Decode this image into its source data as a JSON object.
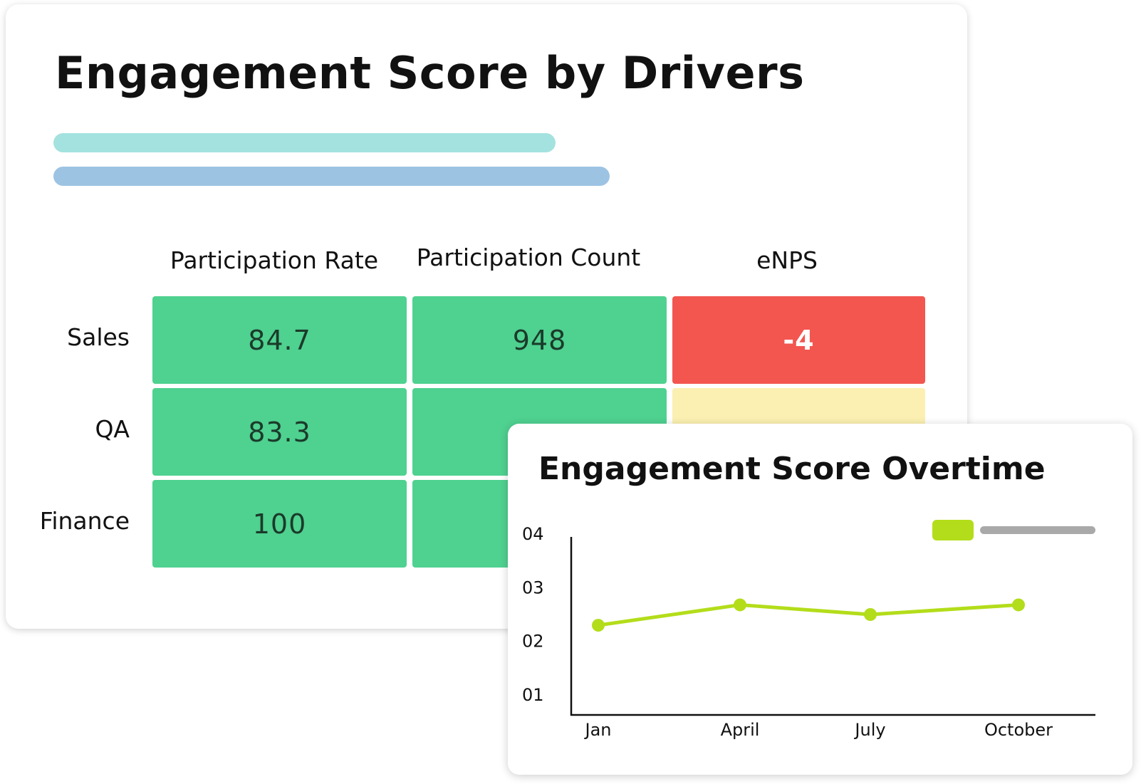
{
  "heatmap": {
    "title": "Engagement Score by Drivers",
    "columns": [
      "Participation Rate",
      "Participation Count",
      "eNPS"
    ],
    "rows": [
      {
        "label": "Sales",
        "cells": [
          {
            "value": "84.7",
            "status": "green"
          },
          {
            "value": "948",
            "status": "green"
          },
          {
            "value": "-4",
            "status": "red"
          }
        ]
      },
      {
        "label": "QA",
        "cells": [
          {
            "value": "83.3",
            "status": "green"
          },
          {
            "value": "",
            "status": "green"
          },
          {
            "value": "",
            "status": "yellow"
          }
        ]
      },
      {
        "label": "Finance",
        "cells": [
          {
            "value": "100",
            "status": "green"
          },
          {
            "value": "",
            "status": "green"
          }
        ]
      }
    ],
    "colors": {
      "green": "#4fd190",
      "red": "#f2564f",
      "yellow": "#fbf0b1",
      "accent_bar_1": "#a3e2df",
      "accent_bar_2": "#9dc3e3"
    }
  },
  "chart_data": {
    "type": "line",
    "title": "Engagement Score Overtime",
    "categories": [
      "Jan",
      "April",
      "July",
      "October"
    ],
    "yticks": [
      "01",
      "02",
      "03",
      "04"
    ],
    "ylim": [
      1,
      4
    ],
    "series": [
      {
        "values": [
          2.3,
          2.68,
          2.5,
          2.68
        ],
        "color": "#b3dd1a"
      }
    ],
    "legend": "top-right",
    "grid": false
  }
}
